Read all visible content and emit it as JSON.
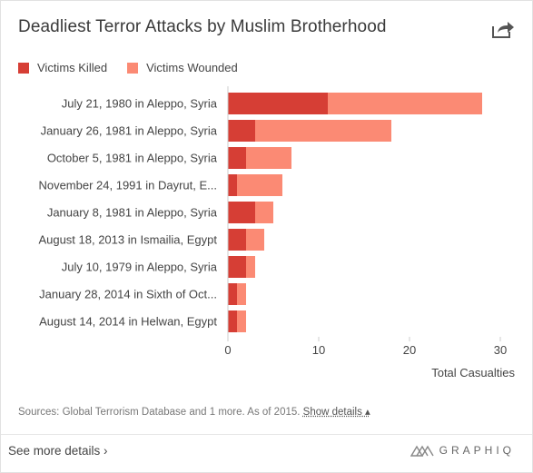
{
  "header": {
    "title": "Deadliest Terror Attacks by Muslim Brotherhood"
  },
  "legend": {
    "killed": "Victims Killed",
    "wounded": "Victims Wounded"
  },
  "colors": {
    "killed": "#d63e35",
    "wounded": "#fb8a74",
    "axis": "#cccccc"
  },
  "icons": {
    "share": "share-arrow-icon",
    "brand": "graphiq-logo-icon"
  },
  "chart_data": {
    "type": "bar",
    "orientation": "horizontal",
    "stacked": true,
    "categories": [
      "July 21, 1980 in Aleppo, Syria",
      "January 26, 1981 in Aleppo, Syria",
      "October 5, 1981 in Aleppo, Syria",
      "November 24, 1991 in Dayrut, E...",
      "January 8, 1981 in Aleppo, Syria",
      "August 18, 2013 in Ismailia, Egypt",
      "July 10, 1979 in Aleppo, Syria",
      "January 28, 2014 in Sixth of Oct...",
      "August 14, 2014 in Helwan, Egypt"
    ],
    "series": [
      {
        "name": "Victims Killed",
        "values": [
          11,
          3,
          2,
          1,
          3,
          2,
          2,
          1,
          1
        ]
      },
      {
        "name": "Victims Wounded",
        "values": [
          17,
          15,
          5,
          5,
          2,
          2,
          1,
          1,
          1
        ]
      }
    ],
    "xlim": [
      0,
      30
    ],
    "xticks": [
      0,
      10,
      20,
      30
    ],
    "xlabel": "Total Casualties",
    "ylabel": "",
    "grid": false,
    "legend_position": "top-left"
  },
  "footer": {
    "sources": "Sources: Global Terrorism Database and 1 more. As of 2015.",
    "show_details": "Show details ▴",
    "see_more": "See more details ›",
    "brand": "GRAPHIQ"
  }
}
